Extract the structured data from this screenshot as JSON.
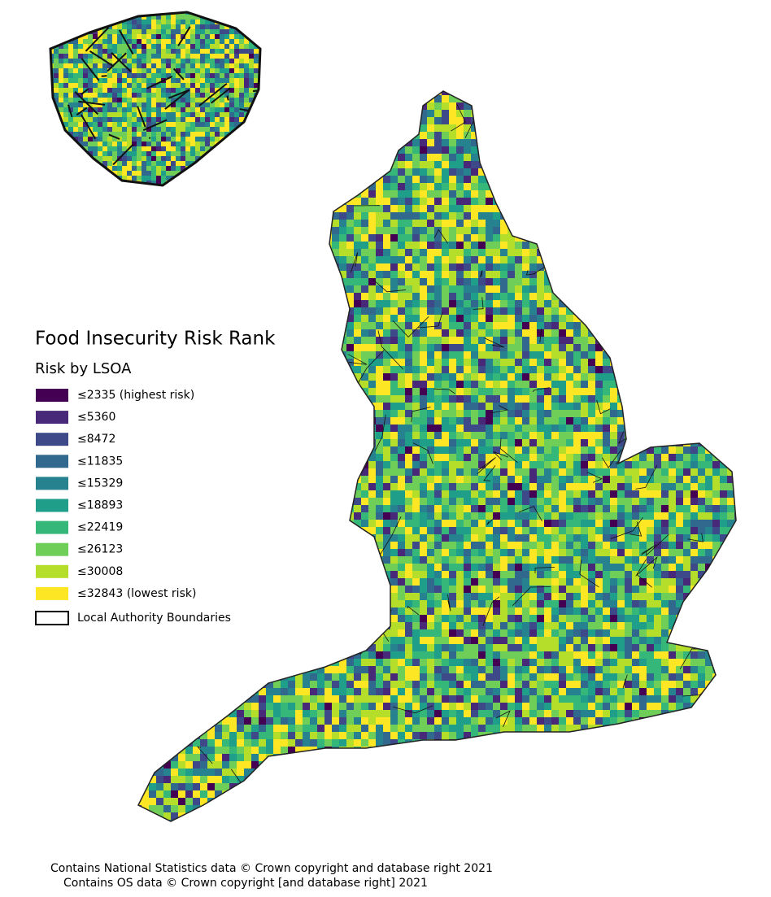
{
  "title": "Food Insecurity Risk Rank",
  "subtitle": "Risk by LSOA",
  "legend": {
    "items": [
      {
        "label": "≤2335 (highest risk)",
        "color": "#440154"
      },
      {
        "label": "≤5360",
        "color": "#482878"
      },
      {
        "label": "≤8472",
        "color": "#3e4989"
      },
      {
        "label": "≤11835",
        "color": "#31688e"
      },
      {
        "label": "≤15329",
        "color": "#26828e"
      },
      {
        "label": "≤18893",
        "color": "#1f9e89"
      },
      {
        "label": "≤22419",
        "color": "#35b779"
      },
      {
        "label": "≤26123",
        "color": "#6ece58"
      },
      {
        "label": "≤30008",
        "color": "#b5de2b"
      },
      {
        "label": "≤32843 (lowest risk)",
        "color": "#fde725"
      }
    ],
    "boundary_label": "Local Authority Boundaries"
  },
  "credits": [
    "Contains National Statistics data © Crown copyright and database right 2021",
    "Contains OS data © Crown copyright [and database right] 2021"
  ]
}
